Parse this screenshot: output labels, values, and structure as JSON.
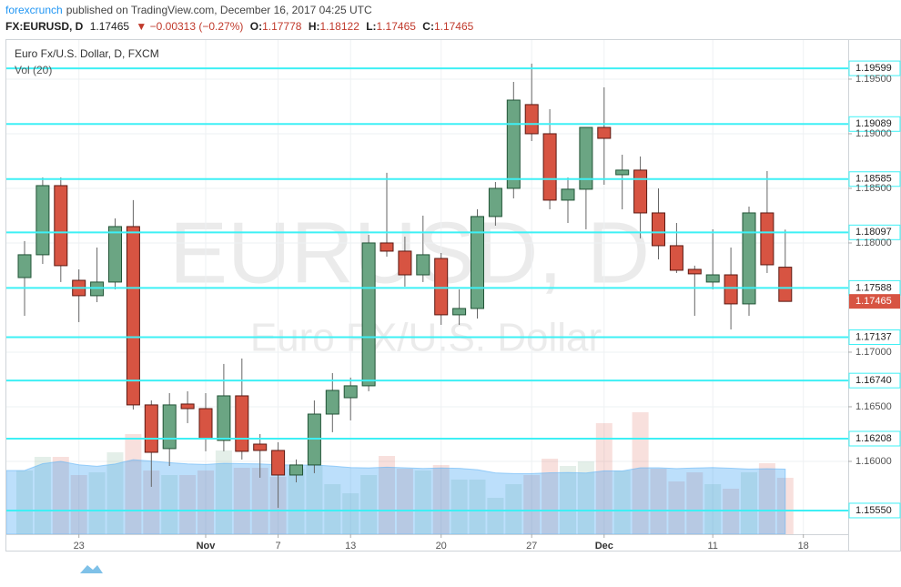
{
  "header": {
    "author": "forexcrunch",
    "published": "published on TradingView.com, December 16, 2017 04:25 UTC",
    "symbol": "FX:EURUSD, D",
    "last": "1.17465",
    "change": "▼ −0.00313 (−0.27%)",
    "ohlc": [
      {
        "key": "O:",
        "value": "1.17778"
      },
      {
        "key": "H:",
        "value": "1.18122"
      },
      {
        "key": "L:",
        "value": "1.17465"
      },
      {
        "key": "C:",
        "value": "1.17465"
      }
    ]
  },
  "chart_data": {
    "type": "candlestick",
    "title": "Euro Fx/U.S. Dollar, D, FXCM",
    "volume_title": "Vol (20)",
    "watermark": [
      "EURUSD, D",
      "Euro FX/U.S. Dollar"
    ],
    "categories": [
      null,
      null,
      null,
      "23",
      null,
      null,
      null,
      null,
      null,
      null,
      "Nov",
      null,
      null,
      null,
      "7",
      null,
      null,
      null,
      "13",
      null,
      null,
      null,
      null,
      "20",
      null,
      null,
      null,
      null,
      "27",
      null,
      null,
      null,
      "Dec",
      null,
      null,
      null,
      null,
      null,
      "11",
      null,
      null,
      null,
      null,
      "18"
    ],
    "open": [
      1.17683,
      1.17892,
      1.18525,
      1.17658,
      1.17517,
      1.17642,
      1.1815,
      1.16517,
      1.16117,
      1.16525,
      1.16483,
      1.16192,
      1.166,
      1.16158,
      1.161,
      1.15875,
      1.15967,
      1.16433,
      1.16583,
      1.16692,
      1.18,
      1.17925,
      1.17708,
      1.17858,
      1.17342,
      1.174,
      1.18242,
      1.185,
      1.19267,
      1.19,
      1.18392,
      1.18492,
      1.19058,
      1.18625,
      1.18667,
      1.18275,
      1.17975,
      1.17758,
      1.17642,
      1.17708,
      1.17442,
      1.18275,
      1.17778,
      null
    ],
    "high": [
      1.18017,
      1.186,
      1.186,
      1.17758,
      1.17958,
      1.18225,
      1.18392,
      1.16558,
      1.16625,
      1.16642,
      1.16625,
      1.16892,
      1.16942,
      1.1625,
      1.16175,
      1.16017,
      1.16558,
      1.16808,
      1.16767,
      1.18075,
      1.18642,
      1.18058,
      1.1825,
      1.17908,
      1.17575,
      1.18308,
      1.18558,
      1.19475,
      1.19642,
      1.19225,
      1.186,
      1.19058,
      1.19425,
      1.18808,
      1.18792,
      1.185,
      1.18183,
      1.17792,
      1.18125,
      1.17958,
      1.18333,
      1.18658,
      1.18122,
      null
    ],
    "low": [
      1.17333,
      1.17808,
      1.17642,
      1.17275,
      1.17458,
      1.17575,
      1.16475,
      1.15767,
      1.15958,
      1.1635,
      1.16092,
      1.16092,
      1.16017,
      1.1585,
      1.15575,
      1.15808,
      1.15892,
      1.16267,
      1.16375,
      1.16642,
      1.17875,
      1.176,
      1.17642,
      1.1725,
      1.1725,
      1.17308,
      1.18158,
      1.18408,
      1.18933,
      1.18308,
      1.18183,
      1.18125,
      1.18533,
      1.18308,
      1.18042,
      1.1785,
      1.17725,
      1.17333,
      1.17575,
      1.17208,
      1.17333,
      1.17725,
      1.17465,
      null
    ],
    "close": [
      1.17892,
      1.18525,
      1.17792,
      1.17517,
      1.17642,
      1.1815,
      1.16517,
      1.16083,
      1.16517,
      1.16483,
      1.16208,
      1.166,
      1.16092,
      1.161,
      1.15875,
      1.15967,
      1.16433,
      1.1665,
      1.16692,
      1.18,
      1.17925,
      1.17708,
      1.17892,
      1.17342,
      1.174,
      1.18242,
      1.185,
      1.19308,
      1.19,
      1.18392,
      1.18492,
      1.19058,
      1.18958,
      1.18667,
      1.18275,
      1.17975,
      1.1775,
      1.17717,
      1.17708,
      1.17442,
      1.18275,
      1.178,
      1.17465,
      null
    ],
    "volume": [
      70,
      85,
      85,
      65,
      68,
      90,
      110,
      70,
      65,
      65,
      70,
      92,
      73,
      73,
      63,
      72,
      76,
      55,
      45,
      65,
      86,
      72,
      70,
      76,
      60,
      60,
      40,
      55,
      65,
      83,
      75,
      80,
      122,
      70,
      134,
      72,
      58,
      68,
      55,
      50,
      68,
      78,
      62,
      null
    ],
    "vlim": [
      0,
      150
    ],
    "ylim": [
      1.15333,
      1.19858
    ],
    "yticks": [
      {
        "value": 1.16,
        "label": "1.16000"
      },
      {
        "value": 1.165,
        "label": "1.16500"
      },
      {
        "value": 1.17,
        "label": "1.17000"
      },
      {
        "value": 1.18,
        "label": "1.18000"
      },
      {
        "value": 1.185,
        "label": "1.18500"
      },
      {
        "value": 1.19,
        "label": "1.19000"
      },
      {
        "value": 1.195,
        "label": "1.19500"
      }
    ],
    "levels": [
      1.19599,
      1.19089,
      1.18585,
      1.18097,
      1.17588,
      1.17137,
      {
        "value": 1.1674,
        "label": "1.16740"
      },
      1.16208,
      {
        "value": 1.1555,
        "label": "1.15550"
      }
    ],
    "last_price": 1.17465,
    "up_color": "#6ba583",
    "down_color": "#d75442",
    "level_color": "#3ef0f5",
    "grid": true
  }
}
